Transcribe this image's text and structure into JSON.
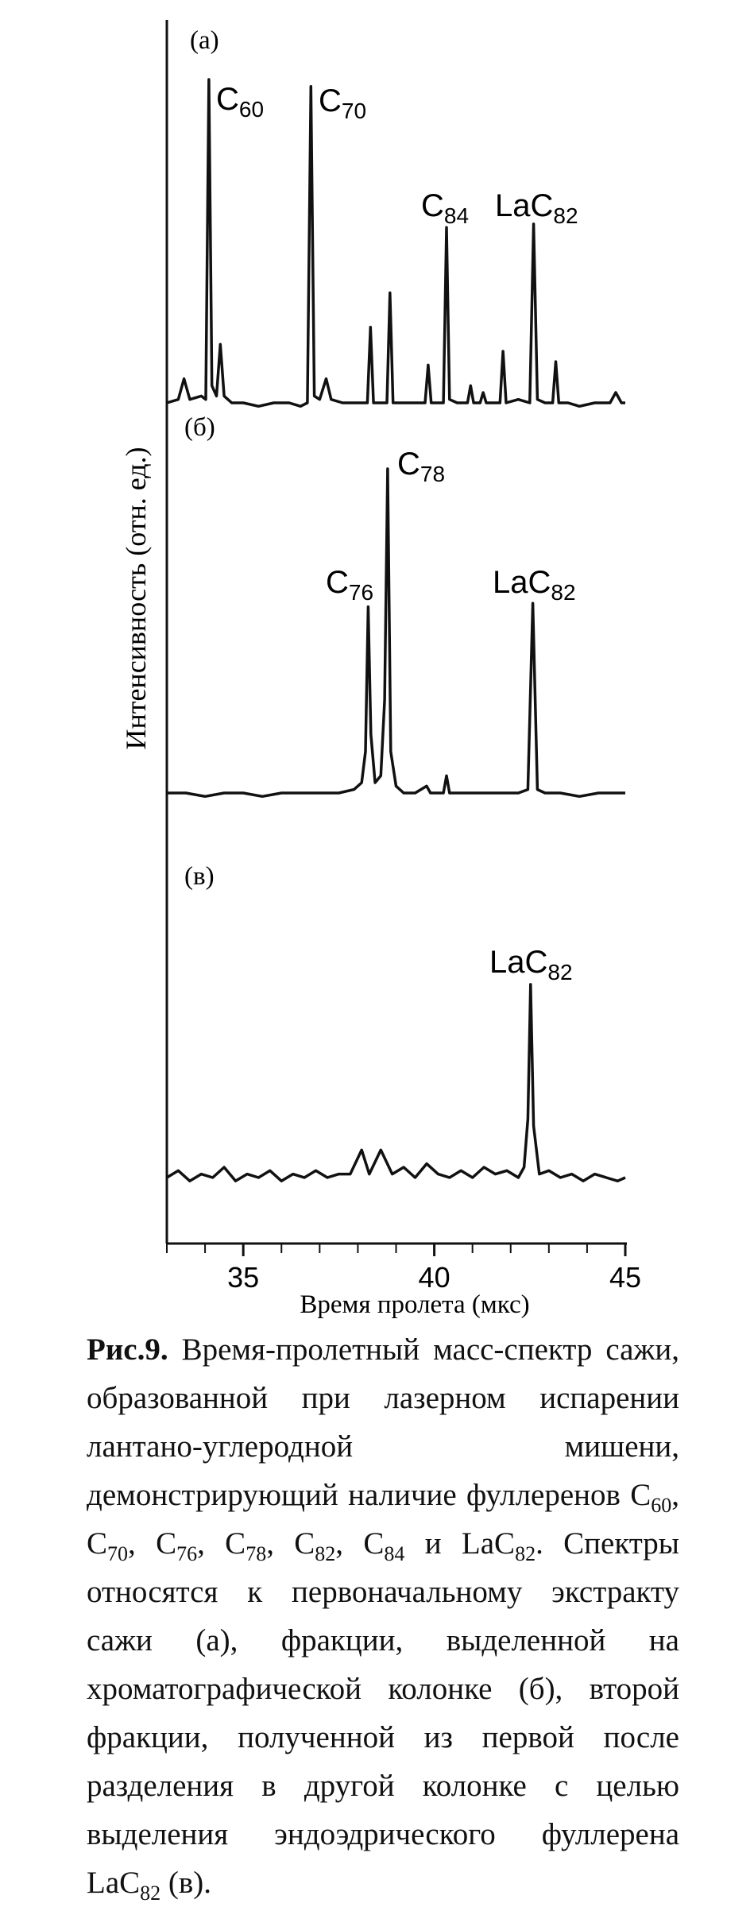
{
  "chart_data": {
    "type": "line",
    "ylabel": "Интенсивность (отн. ед.)",
    "xlabel": "Время пролета (мкс)",
    "xlim": [
      33,
      45
    ],
    "xticks": [
      35,
      40,
      45
    ],
    "xminorticks": [
      33,
      34,
      35,
      36,
      37,
      38,
      39,
      40,
      41,
      42,
      43,
      44,
      45
    ],
    "color": "#111111",
    "panels": [
      {
        "label": "(а)",
        "ylim": [
          0,
          100
        ],
        "x": [
          33.0,
          33.3,
          33.45,
          33.6,
          33.9,
          34.02,
          34.1,
          34.18,
          34.3,
          34.4,
          34.5,
          34.7,
          35.0,
          35.4,
          35.8,
          36.2,
          36.5,
          36.68,
          36.77,
          36.86,
          37.0,
          37.17,
          37.3,
          37.6,
          38.0,
          38.25,
          38.33,
          38.41,
          38.6,
          38.76,
          38.84,
          38.92,
          39.2,
          39.5,
          39.76,
          39.84,
          39.92,
          40.1,
          40.24,
          40.32,
          40.4,
          40.6,
          40.87,
          40.95,
          41.03,
          41.2,
          41.28,
          41.36,
          41.6,
          41.72,
          41.8,
          41.88,
          42.2,
          42.5,
          42.6,
          42.7,
          42.9,
          43.1,
          43.18,
          43.26,
          43.5,
          43.8,
          44.2,
          44.6,
          44.75,
          44.9,
          45.0
        ],
        "values": [
          3,
          4,
          10,
          4,
          5,
          4,
          97,
          8,
          5,
          20,
          5,
          3,
          3,
          2,
          3,
          3,
          2,
          3,
          95,
          5,
          4,
          10,
          4,
          3,
          3,
          3,
          25,
          3,
          3,
          3,
          35,
          3,
          3,
          3,
          3,
          14,
          3,
          3,
          3,
          54,
          4,
          3,
          3,
          8,
          3,
          3,
          6,
          3,
          3,
          3,
          18,
          3,
          4,
          3,
          55,
          4,
          3,
          3,
          15,
          3,
          3,
          2,
          3,
          3,
          6,
          3,
          3
        ],
        "annotations": [
          {
            "base": "C",
            "sub": "60"
          },
          {
            "base": "C",
            "sub": "70"
          },
          {
            "base": "C",
            "sub": "84"
          },
          {
            "base": "LaC",
            "sub": "82"
          }
        ]
      },
      {
        "label": "(б)",
        "ylim": [
          0,
          100
        ],
        "x": [
          33.0,
          33.5,
          34.0,
          34.5,
          35.0,
          35.5,
          36.0,
          36.5,
          37.0,
          37.5,
          37.9,
          38.1,
          38.2,
          38.27,
          38.34,
          38.45,
          38.6,
          38.7,
          38.78,
          38.86,
          39.0,
          39.2,
          39.5,
          39.8,
          39.9,
          40.1,
          40.24,
          40.32,
          40.4,
          40.8,
          41.3,
          41.8,
          42.2,
          42.45,
          42.58,
          42.7,
          42.9,
          43.3,
          43.8,
          44.3,
          45.0
        ],
        "values": [
          3,
          3,
          2,
          3,
          3,
          2,
          3,
          3,
          3,
          3,
          4,
          6,
          15,
          57,
          20,
          6,
          8,
          30,
          97,
          15,
          5,
          3,
          3,
          5,
          3,
          3,
          3,
          8,
          3,
          3,
          3,
          3,
          3,
          4,
          58,
          4,
          3,
          3,
          2,
          3,
          3
        ],
        "annotations": [
          {
            "base": "C",
            "sub": "78"
          },
          {
            "base": "C",
            "sub": "76"
          },
          {
            "base": "LaC",
            "sub": "82"
          }
        ]
      },
      {
        "label": "(в)",
        "ylim": [
          0,
          100
        ],
        "x": [
          33.0,
          33.3,
          33.6,
          33.9,
          34.2,
          34.5,
          34.8,
          35.1,
          35.4,
          35.7,
          36.0,
          36.3,
          36.6,
          36.9,
          37.2,
          37.5,
          37.8,
          38.1,
          38.3,
          38.6,
          38.9,
          39.2,
          39.5,
          39.8,
          40.1,
          40.4,
          40.7,
          41.0,
          41.3,
          41.6,
          41.9,
          42.2,
          42.35,
          42.45,
          42.52,
          42.6,
          42.75,
          43.0,
          43.3,
          43.6,
          43.9,
          44.2,
          44.5,
          44.8,
          45.0
        ],
        "values": [
          3,
          5,
          2,
          4,
          3,
          6,
          2,
          4,
          3,
          5,
          2,
          4,
          3,
          5,
          3,
          4,
          4,
          11,
          4,
          11,
          4,
          6,
          3,
          7,
          4,
          3,
          5,
          3,
          6,
          4,
          5,
          3,
          6,
          20,
          59,
          18,
          4,
          5,
          3,
          4,
          2,
          4,
          3,
          2,
          3
        ],
        "annotations": [
          {
            "base": "LaC",
            "sub": "82"
          }
        ]
      }
    ]
  },
  "caption": {
    "label": "Рис.9.",
    "segments": [
      {
        "text": "Время-пролетный масс-спектр сажи, образованной при лазерном испарении лантано-углеродной мишени, демонстрирующий наличие фуллеренов C"
      },
      {
        "sub": "60"
      },
      {
        "text": ", C"
      },
      {
        "sub": "70"
      },
      {
        "text": ", C"
      },
      {
        "sub": "76"
      },
      {
        "text": ", C"
      },
      {
        "sub": "78"
      },
      {
        "text": ", C"
      },
      {
        "sub": "82"
      },
      {
        "text": ", C"
      },
      {
        "sub": "84"
      },
      {
        "text": " и LaC"
      },
      {
        "sub": "82"
      },
      {
        "text": ". Спектры относятся к первоначальному экстракту сажи (а), фракции, выделенной на хроматографической колонке (б), второй фракции, полученной из первой после разделения в другой колонке с целью выделения эндоэдрического фуллерена LaC"
      },
      {
        "sub": "82"
      },
      {
        "text": " (в)."
      }
    ]
  }
}
